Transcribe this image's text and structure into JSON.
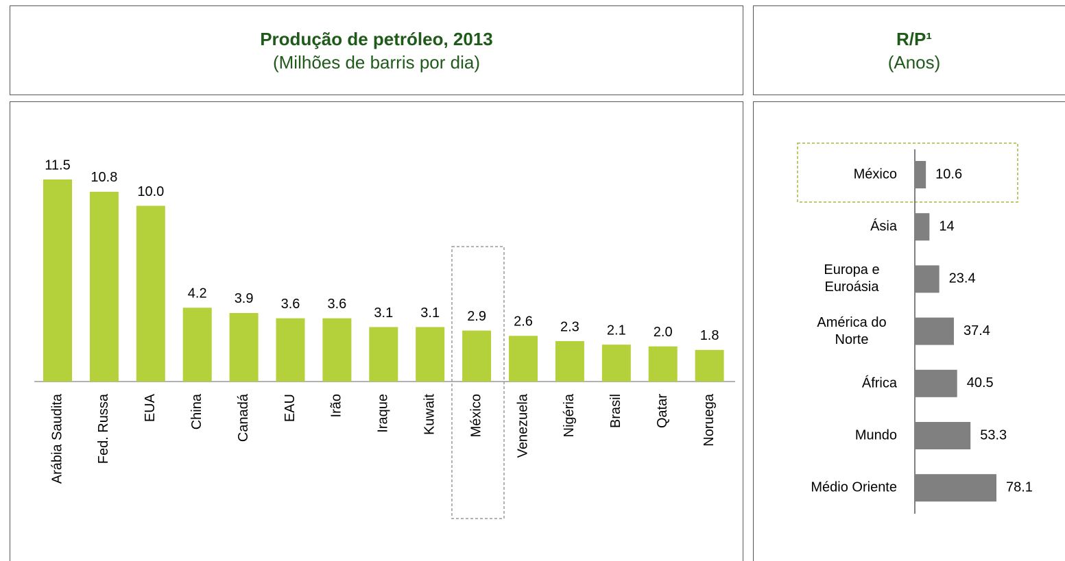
{
  "chart_data": [
    {
      "type": "bar",
      "title": "Produção de petróleo, 2013",
      "subtitle": "(Milhões de barris por dia)",
      "categories": [
        "Arábia Saudita",
        "Fed. Russa",
        "EUA",
        "China",
        "Canadá",
        "EAU",
        "Irão",
        "Iraque",
        "Kuwait",
        "México",
        "Venezuela",
        "Nigéria",
        "Brasil",
        "Qatar",
        "Noruega"
      ],
      "values": [
        11.5,
        10.8,
        10.0,
        4.2,
        3.9,
        3.6,
        3.6,
        3.1,
        3.1,
        2.9,
        2.6,
        2.3,
        2.1,
        2.0,
        1.8
      ],
      "value_labels": [
        "11.5",
        "10.8",
        "10.0",
        "4.2",
        "3.9",
        "3.6",
        "3.6",
        "3.1",
        "3.1",
        "2.9",
        "2.6",
        "2.3",
        "2.1",
        "2.0",
        "1.8"
      ],
      "color": "#b4d03a"
    },
    {
      "type": "hbar",
      "title": "R/P¹",
      "subtitle": "(Anos)",
      "categories": [
        "México",
        "Ásia",
        "Europa e Euroásia",
        "América do Norte",
        "África",
        "Mundo",
        "Médio Oriente"
      ],
      "values": [
        10.6,
        14,
        23.4,
        37.4,
        40.5,
        53.3,
        78.1
      ],
      "color": "#808080"
    }
  ]
}
